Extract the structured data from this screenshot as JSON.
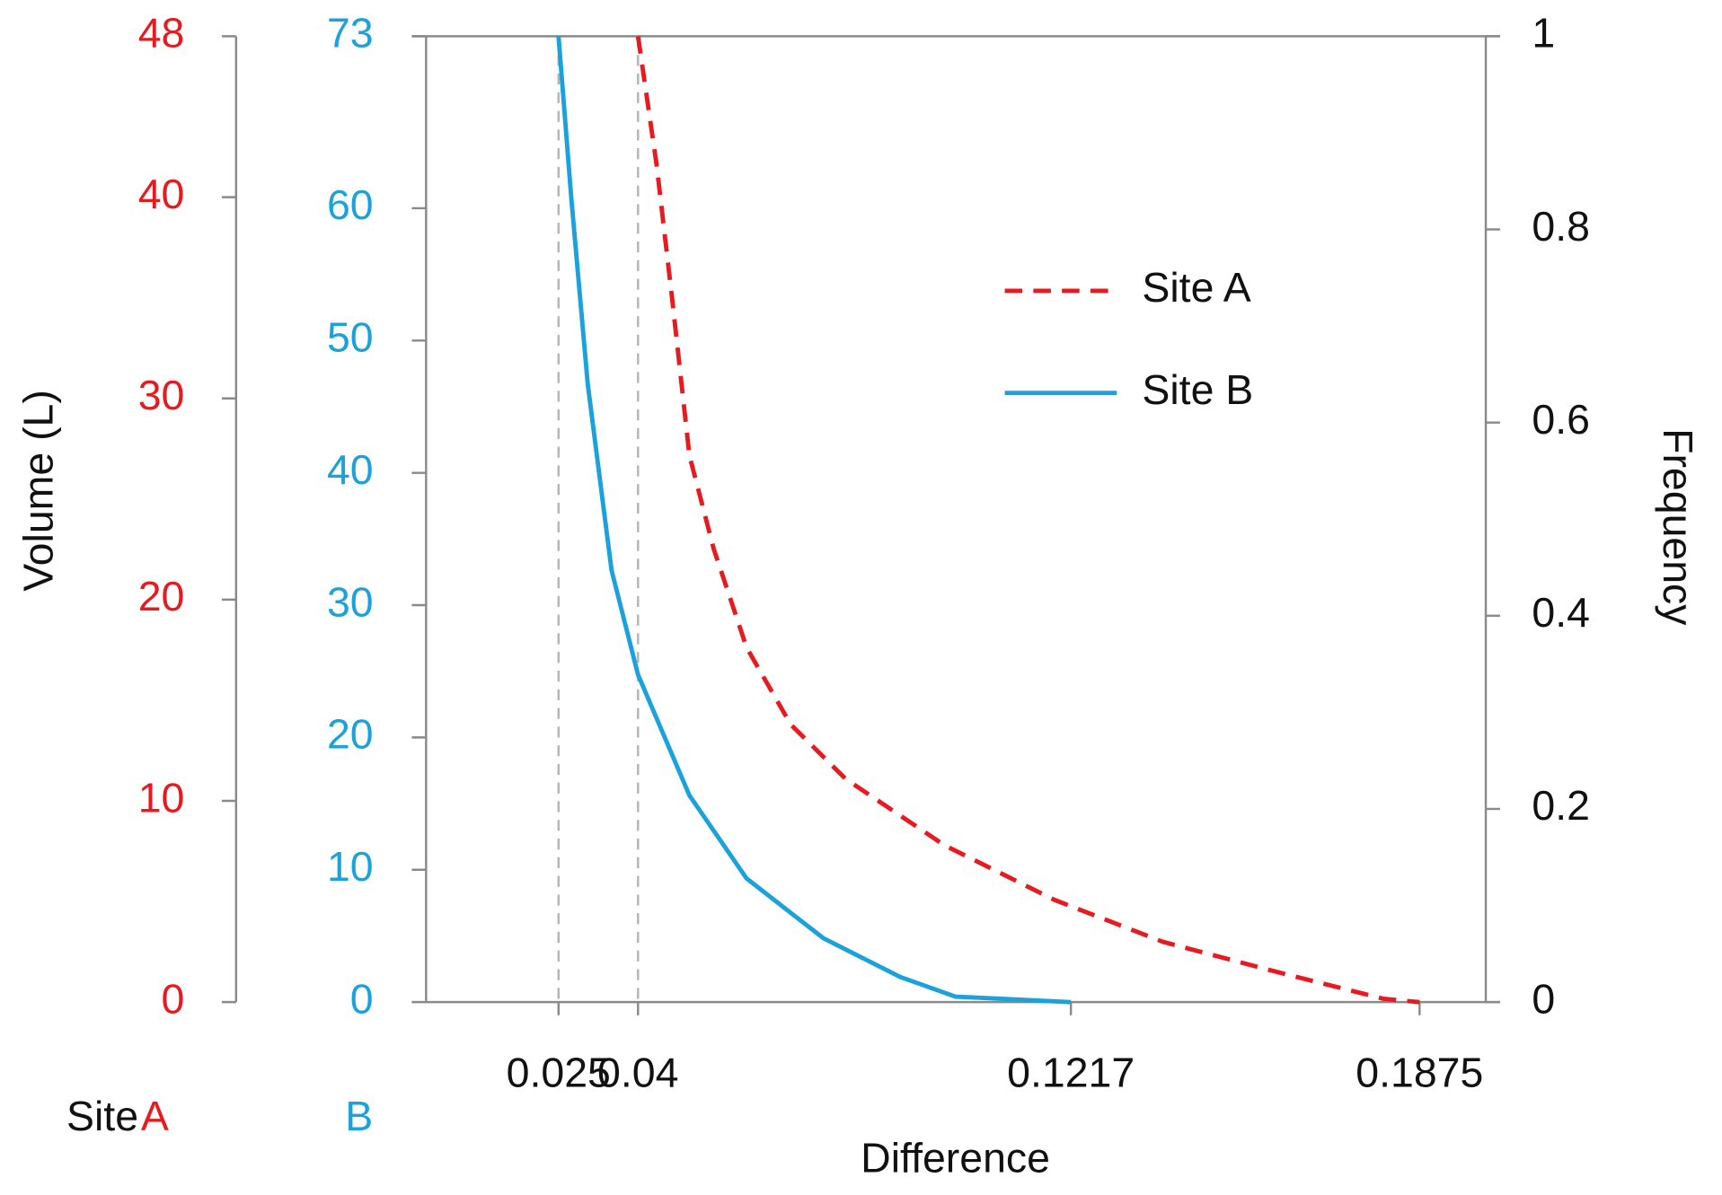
{
  "chart_data": {
    "type": "line",
    "xlabel": "Difference",
    "ylabel": "Volume (L)",
    "y2label": "Frequency",
    "xlim": [
      0,
      0.2
    ],
    "xticks": [
      0.025,
      0.04,
      0.1217,
      0.1875
    ],
    "xtick_guides": [
      true,
      true,
      false,
      false
    ],
    "y2lim": [
      0,
      1
    ],
    "y2ticks": [
      0,
      0.2,
      0.4,
      0.6,
      0.8,
      1
    ],
    "volume_axes": [
      {
        "caption": "A",
        "color": "#e8191f",
        "ylim": [
          0,
          48
        ],
        "yticks": [
          0,
          10,
          20,
          30,
          40,
          48
        ]
      },
      {
        "caption": "B",
        "color": "#1ba1dc",
        "ylim": [
          0,
          73
        ],
        "yticks": [
          0,
          10,
          20,
          30,
          40,
          50,
          60,
          73
        ]
      }
    ],
    "caption_prefix": "Site",
    "legend": "upper right",
    "series": [
      {
        "name": "Site A",
        "color": "#e8191f",
        "dashed": true,
        "axis": "y2",
        "x": [
          0.04,
          0.0435,
          0.0464,
          0.0497,
          0.0543,
          0.0605,
          0.0688,
          0.0792,
          0.0978,
          0.1185,
          0.139,
          0.16,
          0.1807,
          0.1875
        ],
        "values": [
          1,
          0.867,
          0.73,
          0.566,
          0.469,
          0.367,
          0.2875,
          0.231,
          0.1625,
          0.106,
          0.0625,
          0.032,
          0.0034,
          0
        ]
      },
      {
        "name": "Site B",
        "color": "#1ba1dc",
        "dashed": false,
        "axis": "y2",
        "x": [
          0.025,
          0.0274,
          0.0305,
          0.035,
          0.04,
          0.0497,
          0.0605,
          0.075,
          0.0895,
          0.0999,
          0.1217
        ],
        "values": [
          1,
          0.833,
          0.64,
          0.447,
          0.339,
          0.214,
          0.128,
          0.066,
          0.026,
          0.0057,
          0
        ]
      }
    ]
  }
}
